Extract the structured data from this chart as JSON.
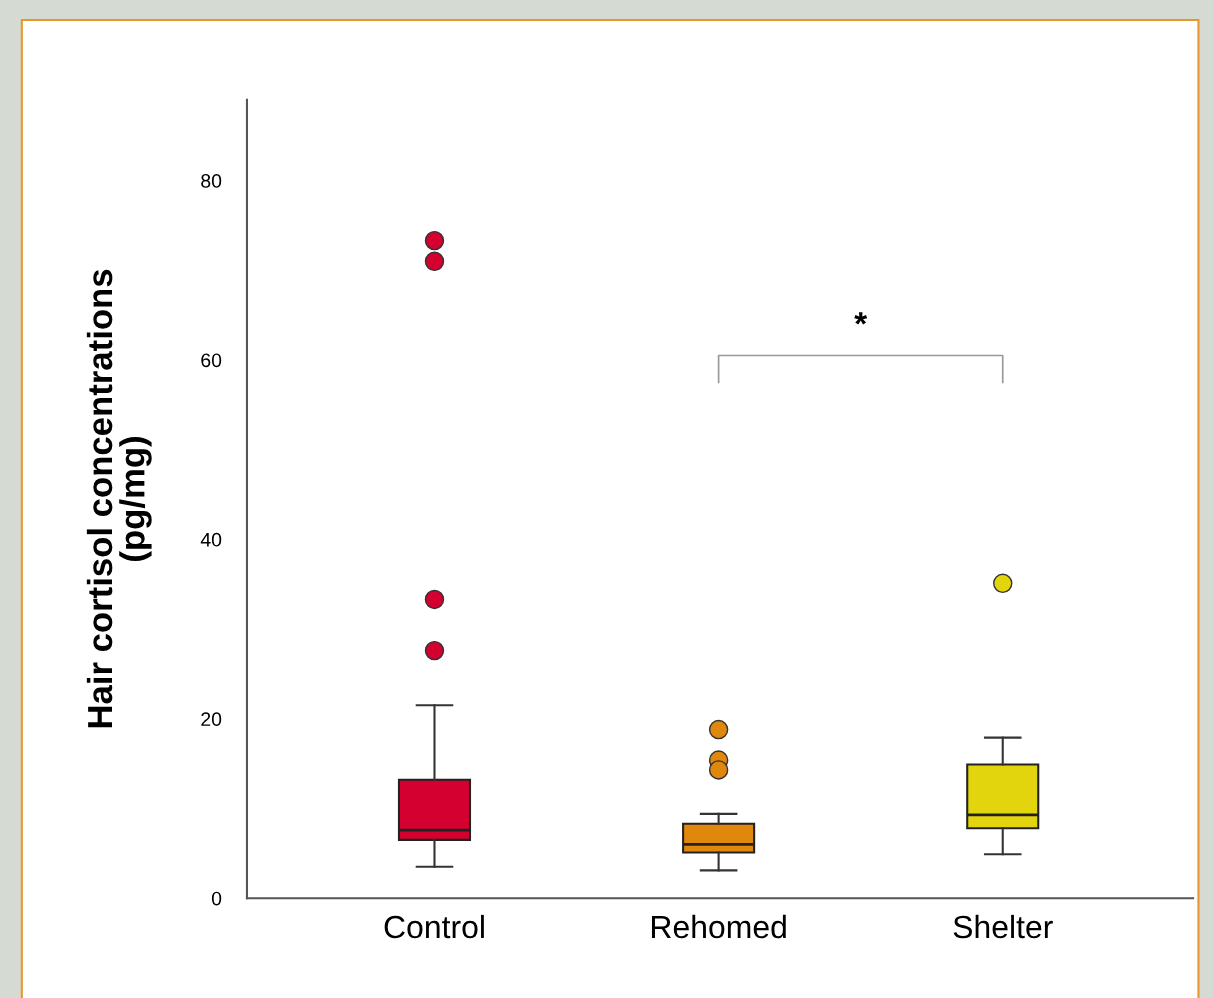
{
  "chart_data": {
    "type": "box",
    "ylabel": "Hair cortisol concentrations\n(pg/mg)",
    "categories": [
      "Control",
      "Rehomed",
      "Shelter"
    ],
    "colors": [
      "#d40030",
      "#e0870e",
      "#e2d50e"
    ],
    "boxes": [
      {
        "low": 3.5,
        "q1": 6.5,
        "median": 7.6,
        "q3": 13.2,
        "high": 21.5,
        "outliers": [
          73.3,
          71.0,
          33.3,
          27.6
        ]
      },
      {
        "low": 3.1,
        "q1": 5.1,
        "median": 6.0,
        "q3": 8.3,
        "high": 9.4,
        "outliers": [
          18.8,
          15.4,
          14.3
        ]
      },
      {
        "low": 4.9,
        "q1": 7.8,
        "median": 9.3,
        "q3": 14.9,
        "high": 17.9,
        "outliers": [
          35.1
        ]
      }
    ],
    "ylim": [
      0,
      89
    ],
    "yticks": [
      0,
      20,
      40,
      60,
      80
    ],
    "grid": false,
    "annotations": [
      "*"
    ]
  }
}
